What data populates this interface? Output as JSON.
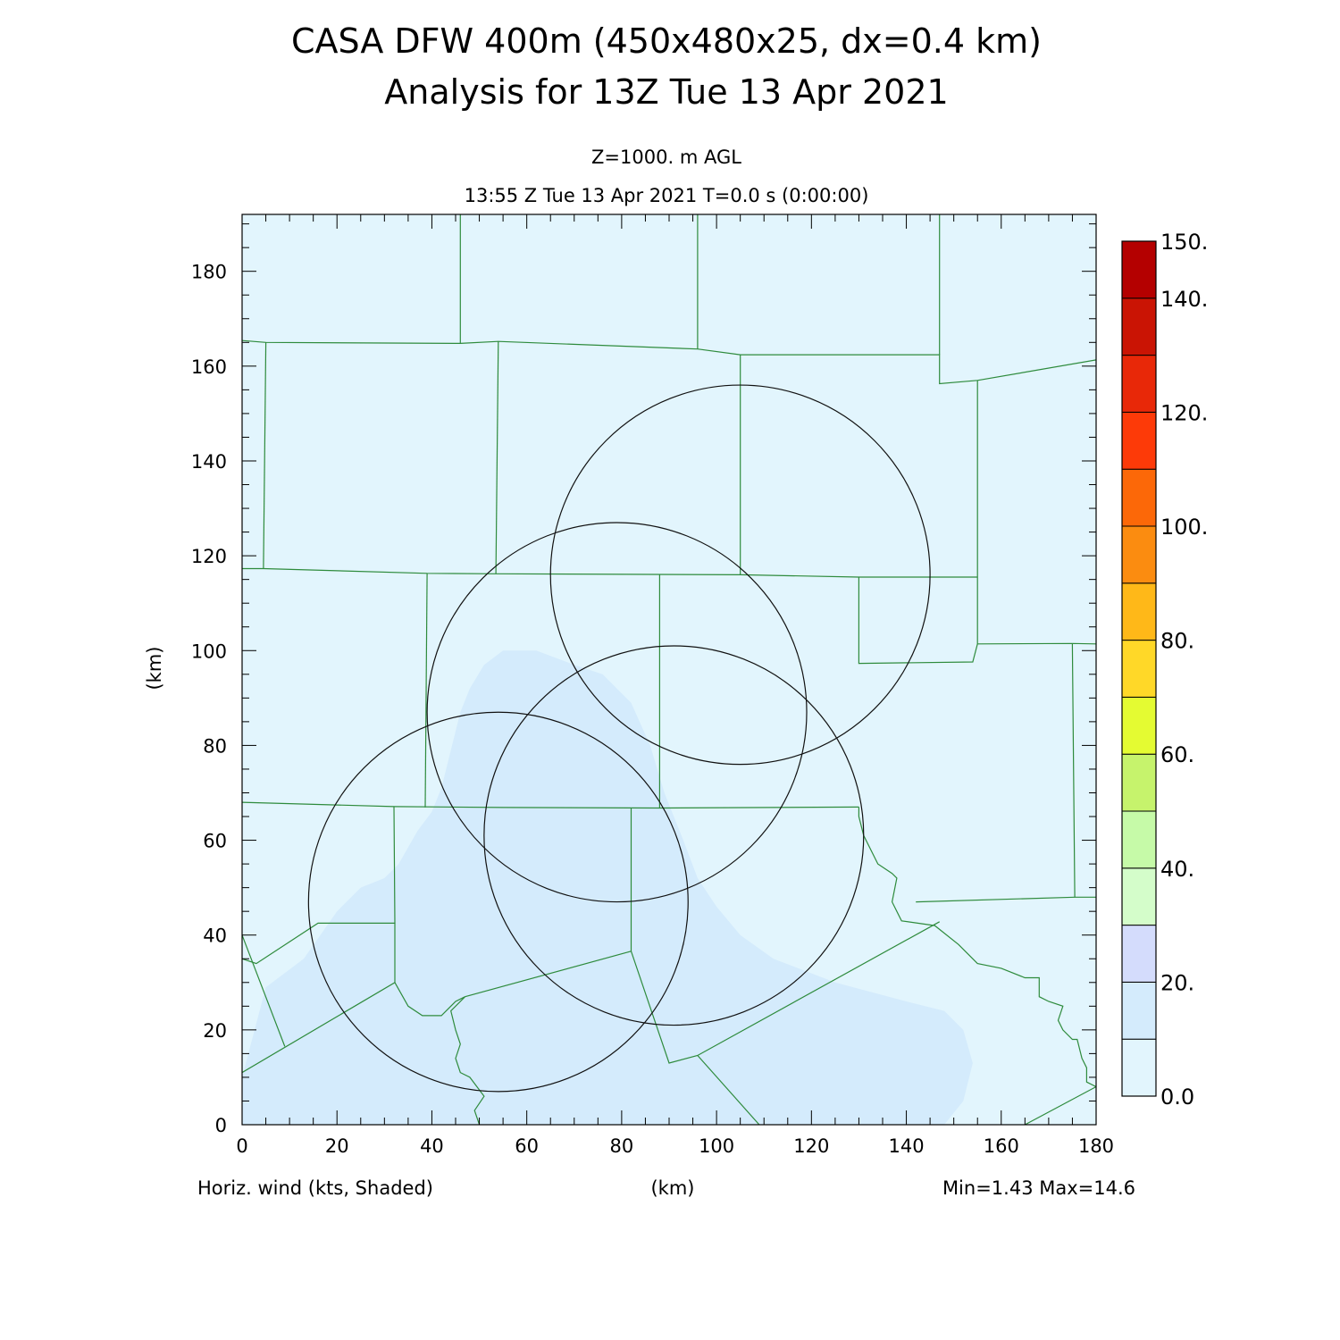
{
  "header": {
    "title_line1": "CASA DFW 400m (450x480x25, dx=0.4 km)",
    "title_line2": "Analysis for 13Z Tue 13 Apr 2021",
    "level": "Z=1000. m AGL",
    "time": "13:55 Z Tue 13 Apr 2021    T=0.0 s (0:00:00)"
  },
  "footer": {
    "field_label": "Horiz. wind (kts, Shaded)",
    "axis_unit": "(km)",
    "minmax": "Min=1.43 Max=14.6"
  },
  "chart_data": {
    "type": "heatmap",
    "title": "CASA DFW 400m (450x480x25, dx=0.4 km)",
    "subtitle": "Analysis for 13Z Tue 13 Apr 2021",
    "field": "Horiz. wind (kts, Shaded)",
    "xlabel": "(km)",
    "ylabel": "(km)",
    "xlim": [
      0,
      180
    ],
    "ylim": [
      0,
      192
    ],
    "xticks": [
      0,
      20,
      40,
      60,
      80,
      100,
      120,
      140,
      160,
      180
    ],
    "yticks": [
      0,
      20,
      40,
      60,
      80,
      100,
      120,
      140,
      160,
      180
    ],
    "min": 1.43,
    "max": 14.6,
    "background_color": "#e2f5fd",
    "region_10_20": {
      "color": "#d4ebfc",
      "polygon": [
        [
          0,
          10
        ],
        [
          5,
          29
        ],
        [
          13,
          35
        ],
        [
          20,
          45
        ],
        [
          25,
          50
        ],
        [
          30,
          52
        ],
        [
          33,
          55
        ],
        [
          37,
          62
        ],
        [
          40,
          66
        ],
        [
          42,
          71
        ],
        [
          44,
          79
        ],
        [
          46,
          87
        ],
        [
          48,
          92
        ],
        [
          51,
          97
        ],
        [
          55,
          100
        ],
        [
          62,
          100
        ],
        [
          70,
          97
        ],
        [
          76,
          95
        ],
        [
          82,
          89
        ],
        [
          86,
          80
        ],
        [
          89,
          70
        ],
        [
          93,
          60
        ],
        [
          96,
          52
        ],
        [
          100,
          46
        ],
        [
          105,
          40
        ],
        [
          112,
          35
        ],
        [
          125,
          30
        ],
        [
          140,
          26
        ],
        [
          148,
          24
        ],
        [
          152,
          20
        ],
        [
          154,
          13
        ],
        [
          152,
          5
        ],
        [
          148,
          0
        ],
        [
          0,
          0
        ]
      ]
    },
    "radar_circles": [
      {
        "center_x": 105,
        "center_y": 116,
        "radius": 40
      },
      {
        "center_x": 79,
        "center_y": 87,
        "radius": 40
      },
      {
        "center_x": 91,
        "center_y": 61,
        "radius": 40
      },
      {
        "center_x": 54,
        "center_y": 47,
        "radius": 40
      }
    ],
    "county_line_color": "#2e8b3c",
    "county_lines": [
      [
        [
          0,
          165.4
        ],
        [
          5,
          165.0
        ],
        [
          46,
          164.8
        ],
        [
          54,
          165.2
        ],
        [
          96,
          163.6
        ],
        [
          105,
          162.4
        ],
        [
          147,
          162.4
        ],
        [
          147,
          156.3
        ],
        [
          155,
          157.0
        ],
        [
          180,
          161.3
        ]
      ],
      [
        [
          46,
          192
        ],
        [
          46,
          164.8
        ]
      ],
      [
        [
          96,
          192
        ],
        [
          96,
          163.6
        ]
      ],
      [
        [
          147,
          192
        ],
        [
          147,
          162.4
        ]
      ],
      [
        [
          5,
          165.0
        ],
        [
          4.5,
          117.3
        ]
      ],
      [
        [
          54,
          165.2
        ],
        [
          53.5,
          116.2
        ]
      ],
      [
        [
          105,
          162.4
        ],
        [
          105,
          116.0
        ]
      ],
      [
        [
          155,
          157.0
        ],
        [
          155,
          115.5
        ]
      ],
      [
        [
          0,
          117.3
        ],
        [
          4.5,
          117.3
        ],
        [
          39,
          116.3
        ],
        [
          53.5,
          116.2
        ],
        [
          105,
          116.0
        ],
        [
          130,
          115.5
        ],
        [
          155,
          115.5
        ]
      ],
      [
        [
          155,
          115.5
        ],
        [
          155,
          101.4
        ],
        [
          175,
          101.5
        ],
        [
          180,
          101.4
        ]
      ],
      [
        [
          130,
          115.5
        ],
        [
          130,
          97.3
        ],
        [
          154,
          97.6
        ],
        [
          155,
          101.4
        ]
      ],
      [
        [
          39,
          116.3
        ],
        [
          38.6,
          66.9
        ]
      ],
      [
        [
          88,
          116.1
        ],
        [
          88,
          66.8
        ]
      ],
      [
        [
          0,
          68.0
        ],
        [
          32,
          67.1
        ],
        [
          55,
          66.9
        ],
        [
          88,
          66.8
        ],
        [
          130,
          67.0
        ]
      ],
      [
        [
          130,
          67.0
        ],
        [
          130,
          65
        ],
        [
          131,
          61
        ],
        [
          134,
          55
        ],
        [
          137,
          53
        ],
        [
          138,
          52
        ],
        [
          137,
          47
        ],
        [
          139,
          43
        ],
        [
          146,
          42
        ],
        [
          151,
          38
        ],
        [
          155,
          34
        ],
        [
          160,
          33
        ],
        [
          165,
          31
        ],
        [
          168,
          31
        ],
        [
          168,
          27
        ],
        [
          170,
          26
        ],
        [
          173,
          25
        ],
        [
          172,
          22
        ],
        [
          173,
          20
        ],
        [
          175,
          18
        ],
        [
          176,
          18
        ],
        [
          177,
          14
        ],
        [
          178,
          12
        ],
        [
          178,
          9
        ],
        [
          180,
          8
        ]
      ],
      [
        [
          175,
          101.5
        ],
        [
          175.5,
          48
        ],
        [
          180,
          48
        ]
      ],
      [
        [
          142,
          47
        ],
        [
          175.5,
          48
        ]
      ],
      [
        [
          32,
          67.1
        ],
        [
          32.2,
          42.5
        ],
        [
          16,
          42.5
        ],
        [
          3,
          34
        ],
        [
          0,
          35
        ]
      ],
      [
        [
          32.2,
          42.5
        ],
        [
          32.2,
          30
        ]
      ],
      [
        [
          0,
          40
        ],
        [
          9,
          16.5
        ]
      ],
      [
        [
          0,
          11
        ],
        [
          32.2,
          30
        ],
        [
          35,
          25
        ],
        [
          38,
          23
        ],
        [
          42,
          23
        ],
        [
          45,
          26
        ],
        [
          47,
          27
        ]
      ],
      [
        [
          82,
          66.8
        ],
        [
          82,
          36.6
        ],
        [
          90,
          13
        ],
        [
          96,
          14.6
        ],
        [
          147,
          42.8
        ]
      ],
      [
        [
          47,
          27
        ],
        [
          82,
          36.6
        ]
      ],
      [
        [
          47,
          27
        ],
        [
          44,
          24
        ],
        [
          45,
          20
        ],
        [
          46,
          17
        ],
        [
          45,
          14
        ],
        [
          46,
          11
        ],
        [
          48,
          10
        ],
        [
          51,
          6
        ],
        [
          49,
          3
        ],
        [
          50,
          0
        ]
      ],
      [
        [
          96,
          14.6
        ],
        [
          109,
          0
        ]
      ],
      [
        [
          165,
          0
        ],
        [
          180,
          8
        ]
      ]
    ]
  },
  "colorbar": {
    "levels": [
      0,
      10,
      20,
      30,
      40,
      50,
      60,
      70,
      80,
      90,
      100,
      110,
      120,
      130,
      140,
      150
    ],
    "colors": [
      "#e2f5fd",
      "#d4ebfc",
      "#d4dcfc",
      "#d4fdca",
      "#c6faa8",
      "#c6f36c",
      "#e4fb32",
      "#ffd828",
      "#ffb818",
      "#fb8c10",
      "#fc6808",
      "#fd3a08",
      "#e82808",
      "#ca1404",
      "#b40000"
    ],
    "labels": [
      "0.0",
      "20.",
      "40.",
      "60.",
      "80.",
      "100.",
      "120.",
      "140.",
      "150."
    ],
    "label_values": [
      0,
      20,
      40,
      60,
      80,
      100,
      120,
      140,
      150
    ]
  }
}
